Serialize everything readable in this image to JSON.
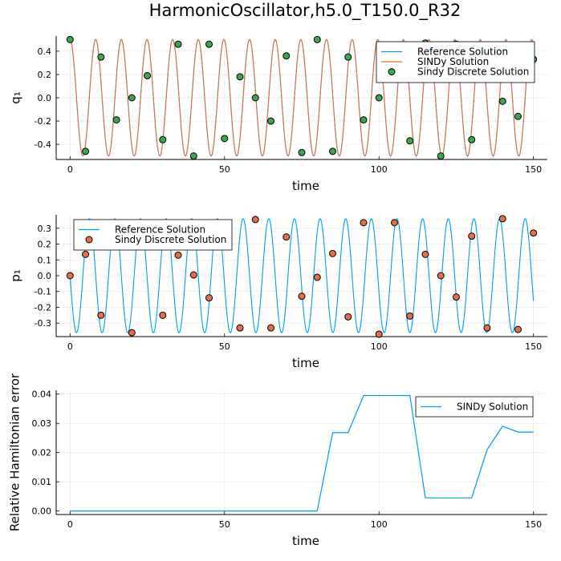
{
  "title": "HarmonicOscillator,h5.0_T150.0_R32",
  "chart_data": [
    {
      "type": "line",
      "id": "q",
      "xlabel": "time",
      "ylabel": "q₁",
      "xlim": [
        -4.5,
        154.5
      ],
      "ylim": [
        -0.53,
        0.53
      ],
      "xticks": [
        0,
        50,
        100,
        150
      ],
      "yticks": [
        -0.4,
        -0.2,
        0.0,
        0.2,
        0.4
      ],
      "ytick_labels": [
        "-0.4",
        "-0.2",
        "0.0",
        "0.2",
        "0.4"
      ],
      "grid": true,
      "legend_position": "top-right",
      "series": [
        {
          "name": "Reference Solution",
          "kind": "line",
          "color": "#009AFA",
          "function": "cosine",
          "amplitude": 0.5,
          "period": 8.3,
          "x_range": [
            0,
            150
          ]
        },
        {
          "name": "SINDy Solution",
          "kind": "line",
          "color": "#E26F46",
          "function": "cosine",
          "amplitude": 0.5,
          "period": 8.3,
          "x_range": [
            0,
            150
          ]
        },
        {
          "name": "Sindy Discrete Solution",
          "kind": "scatter",
          "color": "#3EA44E",
          "x": [
            0,
            5,
            10,
            15,
            20,
            25,
            30,
            35,
            40,
            45,
            50,
            55,
            60,
            65,
            70,
            75,
            80,
            85,
            90,
            95,
            100,
            105,
            110,
            115,
            120,
            125,
            130,
            135,
            140,
            145,
            150
          ],
          "y": [
            0.5,
            -0.46,
            0.35,
            -0.19,
            0.0,
            0.19,
            -0.36,
            0.46,
            -0.5,
            0.46,
            -0.35,
            0.18,
            0.0,
            -0.2,
            0.36,
            -0.47,
            0.5,
            -0.46,
            0.35,
            -0.19,
            0.0,
            0.2,
            -0.37,
            0.47,
            -0.5,
            0.46,
            -0.36,
            0.18,
            -0.03,
            -0.16,
            0.33
          ]
        }
      ]
    },
    {
      "type": "line",
      "id": "p",
      "xlabel": "time",
      "ylabel": "p₁",
      "xlim": [
        -4.5,
        154.5
      ],
      "ylim": [
        -0.385,
        0.385
      ],
      "xticks": [
        0,
        50,
        100,
        150
      ],
      "yticks": [
        -0.3,
        -0.2,
        -0.1,
        0.0,
        0.1,
        0.2,
        0.3
      ],
      "ytick_labels": [
        "-0.3",
        "-0.2",
        "-0.1",
        "0.0",
        "0.1",
        "0.2",
        "0.3"
      ],
      "grid": true,
      "legend_position": "top-left",
      "series": [
        {
          "name": "Reference Solution",
          "kind": "line",
          "color": "#009AFA",
          "function": "negative-sine",
          "amplitude": 0.36,
          "period": 8.3,
          "x_range": [
            0,
            150
          ]
        },
        {
          "name": "Sindy Discrete Solution",
          "kind": "scatter",
          "color": "#E26F46",
          "x": [
            0,
            5,
            10,
            15,
            20,
            25,
            30,
            35,
            40,
            45,
            50,
            55,
            60,
            65,
            70,
            75,
            80,
            85,
            90,
            95,
            100,
            105,
            110,
            115,
            120,
            125,
            130,
            135,
            140,
            145,
            150
          ],
          "y": [
            0.0,
            0.135,
            -0.25,
            0.3,
            -0.36,
            0.3,
            -0.25,
            0.13,
            0.005,
            -0.14,
            0.24,
            -0.33,
            0.355,
            -0.33,
            0.245,
            -0.13,
            -0.01,
            0.14,
            -0.26,
            0.335,
            -0.37,
            0.335,
            -0.255,
            0.135,
            0.0,
            -0.135,
            0.25,
            -0.33,
            0.36,
            -0.34,
            0.27
          ]
        }
      ]
    },
    {
      "type": "line",
      "id": "h",
      "xlabel": "time",
      "ylabel": "Relative Hamiltonian error",
      "xlim": [
        -4.5,
        154.5
      ],
      "ylim": [
        -0.0012,
        0.0413
      ],
      "xticks": [
        0,
        50,
        100,
        150
      ],
      "yticks": [
        0.0,
        0.01,
        0.02,
        0.03,
        0.04
      ],
      "ytick_labels": [
        "0.00",
        "0.01",
        "0.02",
        "0.03",
        "0.04"
      ],
      "grid": true,
      "legend_position": "top-right",
      "series": [
        {
          "name": "SINDy Solution",
          "kind": "line",
          "color": "#009AFA",
          "x": [
            0,
            80,
            85,
            90,
            95,
            110,
            115,
            130,
            135,
            140,
            145,
            150
          ],
          "y": [
            0.0,
            0.0,
            0.0268,
            0.0268,
            0.0395,
            0.0395,
            0.0045,
            0.0045,
            0.021,
            0.029,
            0.027,
            0.027
          ]
        }
      ]
    }
  ]
}
